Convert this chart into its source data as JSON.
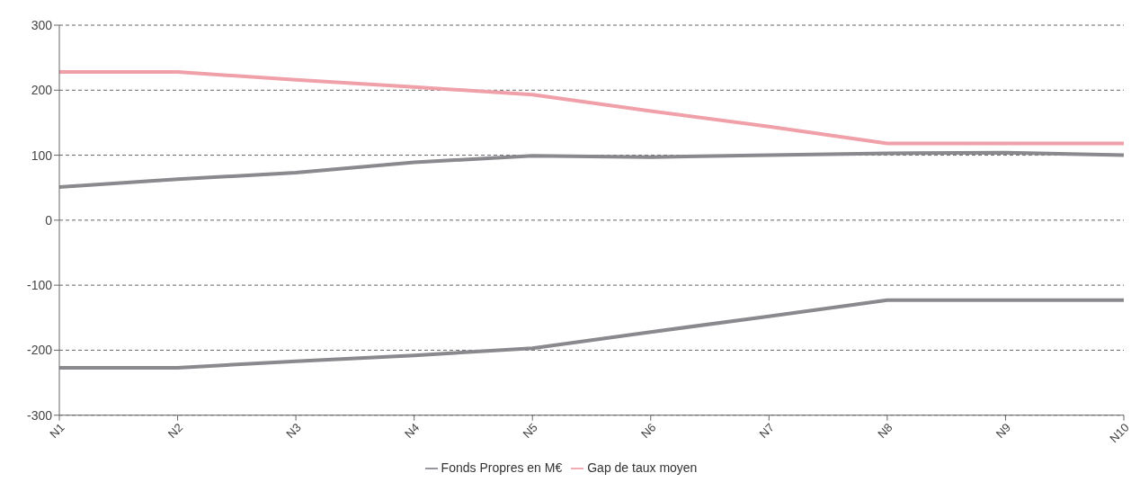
{
  "chart_data": {
    "type": "line",
    "categories": [
      "N1",
      "N2",
      "N3",
      "N4",
      "N5",
      "N6",
      "N7",
      "N8",
      "N9",
      "N10"
    ],
    "series": [
      {
        "name": "Gap de taux moyen",
        "color": "#f0a0a8",
        "values": [
          228,
          228,
          216,
          205,
          193,
          168,
          144,
          118,
          118,
          118
        ]
      },
      {
        "name": "Fonds Propres  en  M€",
        "color": "#8a8a8e",
        "values": [
          51,
          63,
          73,
          89,
          99,
          97,
          100,
          103,
          104,
          100
        ]
      },
      {
        "color": "#8a8a8e",
        "values": [
          -227,
          -227,
          -217,
          -208,
          -197,
          -172,
          -148,
          -123,
          -123,
          -123
        ]
      }
    ],
    "ylim": [
      -300,
      300
    ],
    "yticks": [
      -300,
      -200,
      -100,
      0,
      100,
      200,
      300
    ],
    "grid": "y",
    "legend": "bottom",
    "marker": "none",
    "line_style": "solid"
  }
}
